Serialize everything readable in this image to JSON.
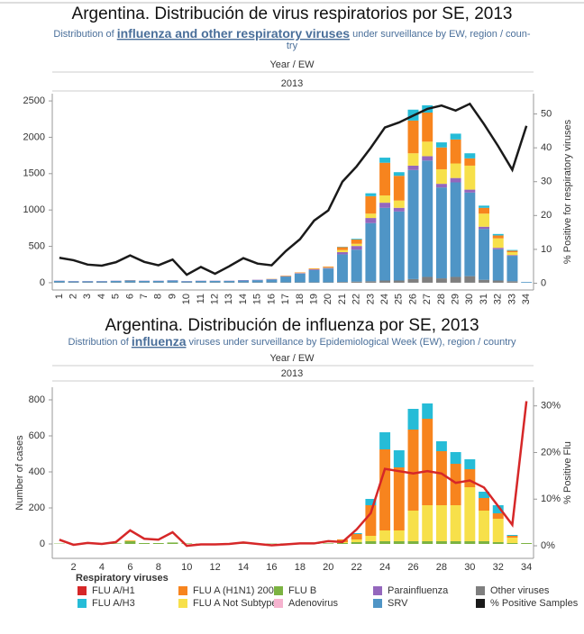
{
  "charts_header": null,
  "legend": {
    "title": "Respiratory viruses",
    "items": [
      {
        "name": "FLU A/H1",
        "color": "#d62728"
      },
      {
        "name": "FLU A/H3",
        "color": "#26bcd7"
      },
      {
        "name": "FLU A (H1N1) 2009",
        "color": "#f7841e"
      },
      {
        "name": "FLU A Not Subtyped",
        "color": "#f7e04a"
      },
      {
        "name": "FLU B",
        "color": "#7cb342"
      },
      {
        "name": "Adenovirus",
        "color": "#f6b3cf"
      },
      {
        "name": "Parainfluenza",
        "color": "#9467bd"
      },
      {
        "name": "SRV",
        "color": "#4f95c6"
      },
      {
        "name": "Other viruses",
        "color": "#7f7f7f"
      },
      {
        "name": "% Positive Samples",
        "color": "#1a1a1a"
      }
    ]
  },
  "chart_data": [
    {
      "type": "bar",
      "title": "Argentina. Distribución de virus respiratorios por SE, 2013",
      "subtitle": [
        "Distribution of ",
        "influenza and other respiratory viruses",
        " under surveillance by EW, region / coun-",
        "try"
      ],
      "header": [
        "Year / EW",
        "2013"
      ],
      "y2label": "% Positive for respiratory viruses",
      "categories": [
        "1",
        "2",
        "3",
        "4",
        "5",
        "6",
        "7",
        "8",
        "9",
        "10",
        "11",
        "12",
        "13",
        "14",
        "15",
        "16",
        "17",
        "18",
        "19",
        "20",
        "21",
        "22",
        "23",
        "24",
        "25",
        "26",
        "27",
        "28",
        "29",
        "30",
        "31",
        "32",
        "33",
        "34"
      ],
      "ylim": [
        -100,
        2600
      ],
      "yticks": [
        0,
        500,
        1000,
        1500,
        2000,
        2500
      ],
      "y2lim": [
        -2,
        56
      ],
      "y2ticks": [
        0,
        10,
        20,
        30,
        40,
        50
      ],
      "series": [
        {
          "color": "#7f7f7f",
          "values": [
            5,
            5,
            5,
            5,
            5,
            5,
            5,
            5,
            5,
            5,
            5,
            5,
            5,
            5,
            5,
            5,
            5,
            5,
            5,
            5,
            10,
            15,
            20,
            30,
            30,
            50,
            80,
            60,
            80,
            90,
            40,
            30,
            20,
            0
          ]
        },
        {
          "color": "#4f95c6",
          "values": [
            20,
            15,
            15,
            15,
            20,
            25,
            20,
            20,
            25,
            15,
            20,
            20,
            20,
            25,
            30,
            40,
            80,
            120,
            170,
            190,
            380,
            440,
            800,
            1000,
            950,
            1500,
            1600,
            1250,
            1300,
            1150,
            700,
            430,
            350,
            10
          ]
        },
        {
          "color": "#9467bd",
          "values": [
            3,
            3,
            3,
            3,
            3,
            3,
            3,
            3,
            3,
            3,
            3,
            3,
            3,
            5,
            5,
            5,
            5,
            8,
            10,
            10,
            30,
            50,
            70,
            70,
            50,
            60,
            60,
            50,
            60,
            40,
            30,
            20,
            10,
            0
          ]
        },
        {
          "color": "#f7e04a",
          "values": [
            0,
            0,
            0,
            0,
            0,
            0,
            0,
            0,
            0,
            0,
            0,
            0,
            0,
            0,
            0,
            2,
            3,
            5,
            5,
            8,
            30,
            30,
            60,
            100,
            100,
            170,
            200,
            200,
            200,
            330,
            180,
            130,
            40,
            0
          ]
        },
        {
          "color": "#f7841e",
          "values": [
            0,
            0,
            0,
            0,
            0,
            2,
            0,
            0,
            0,
            0,
            0,
            0,
            0,
            0,
            0,
            2,
            5,
            5,
            8,
            10,
            40,
            60,
            240,
            450,
            340,
            450,
            400,
            300,
            330,
            100,
            80,
            40,
            20,
            0
          ]
        },
        {
          "color": "#26bcd7",
          "values": [
            0,
            0,
            0,
            0,
            0,
            0,
            0,
            0,
            0,
            0,
            0,
            0,
            0,
            0,
            0,
            0,
            0,
            0,
            0,
            0,
            5,
            10,
            40,
            70,
            50,
            150,
            100,
            70,
            80,
            70,
            30,
            20,
            10,
            0
          ]
        },
        {
          "type": "line",
          "axis": "y2",
          "color": "#1a1a1a",
          "values": [
            7.5,
            6.8,
            5.5,
            5.2,
            6.2,
            8.2,
            6.3,
            5.3,
            7,
            2.5,
            4.8,
            2.8,
            5,
            7.4,
            5.8,
            5.3,
            9.5,
            13,
            18.5,
            21.5,
            30,
            34.5,
            40,
            46,
            47.5,
            49.5,
            51.5,
            52.5,
            51,
            53,
            47,
            40.5,
            33.5,
            46.5
          ]
        }
      ]
    },
    {
      "type": "bar",
      "title": "Argentina. Distribución de influenza por SE, 2013",
      "subtitle": [
        "Distribution of ",
        "influenza",
        " viruses under surveillance by Epidemiological Week (EW), region / country"
      ],
      "header": [
        "Year / EW",
        "2013"
      ],
      "ylabel": "Number of cases",
      "y2label": "% Positive Flu",
      "categories": [
        null,
        "2",
        null,
        "4",
        null,
        "6",
        null,
        "8",
        null,
        "10",
        null,
        "12",
        null,
        "14",
        null,
        "16",
        null,
        "18",
        null,
        "20",
        null,
        "22",
        null,
        "24",
        null,
        "26",
        null,
        "28",
        null,
        "30",
        null,
        "32",
        null,
        "34"
      ],
      "ylim": [
        -80,
        870
      ],
      "yticks": [
        0,
        200,
        400,
        600,
        800
      ],
      "y2lim": [
        -2.7,
        34
      ],
      "y2ticks": [
        {
          "value": 0,
          "label": "0%"
        },
        {
          "value": 10,
          "label": "10%"
        },
        {
          "value": 20,
          "label": "20%"
        },
        {
          "value": 30,
          "label": "30%"
        }
      ],
      "series": [
        {
          "color": "#7cb342",
          "values": [
            2,
            2,
            3,
            3,
            3,
            15,
            5,
            5,
            8,
            3,
            2,
            2,
            2,
            2,
            2,
            2,
            3,
            3,
            3,
            3,
            5,
            10,
            15,
            15,
            15,
            15,
            15,
            15,
            15,
            15,
            15,
            10,
            5,
            5
          ]
        },
        {
          "color": "#f7e04a",
          "values": [
            0,
            0,
            0,
            0,
            0,
            3,
            0,
            0,
            0,
            0,
            0,
            0,
            0,
            0,
            0,
            0,
            0,
            0,
            0,
            0,
            5,
            15,
            30,
            60,
            60,
            170,
            200,
            200,
            200,
            300,
            170,
            130,
            30,
            0
          ]
        },
        {
          "color": "#f7841e",
          "values": [
            0,
            0,
            0,
            0,
            0,
            2,
            0,
            0,
            0,
            0,
            0,
            0,
            0,
            0,
            0,
            0,
            0,
            0,
            0,
            0,
            15,
            30,
            170,
            450,
            350,
            450,
            480,
            300,
            230,
            100,
            70,
            30,
            10,
            0
          ]
        },
        {
          "color": "#26bcd7",
          "values": [
            0,
            0,
            0,
            0,
            0,
            0,
            0,
            0,
            0,
            0,
            0,
            0,
            0,
            0,
            0,
            0,
            0,
            0,
            0,
            0,
            0,
            5,
            35,
            95,
            95,
            115,
            85,
            55,
            65,
            55,
            35,
            45,
            5,
            0
          ]
        },
        {
          "type": "line",
          "axis": "y2",
          "color": "#d62728",
          "values": [
            1.3,
            0.2,
            0.6,
            0.4,
            0.8,
            3.3,
            1.5,
            1.3,
            2.9,
            0,
            0.3,
            0.3,
            0.4,
            0.7,
            0.4,
            0.1,
            0.3,
            0.5,
            0.5,
            1,
            0.8,
            3.5,
            7,
            16.5,
            16,
            15.5,
            16,
            15.5,
            13.5,
            14,
            12.5,
            8.5,
            4.5,
            31
          ]
        }
      ]
    }
  ]
}
